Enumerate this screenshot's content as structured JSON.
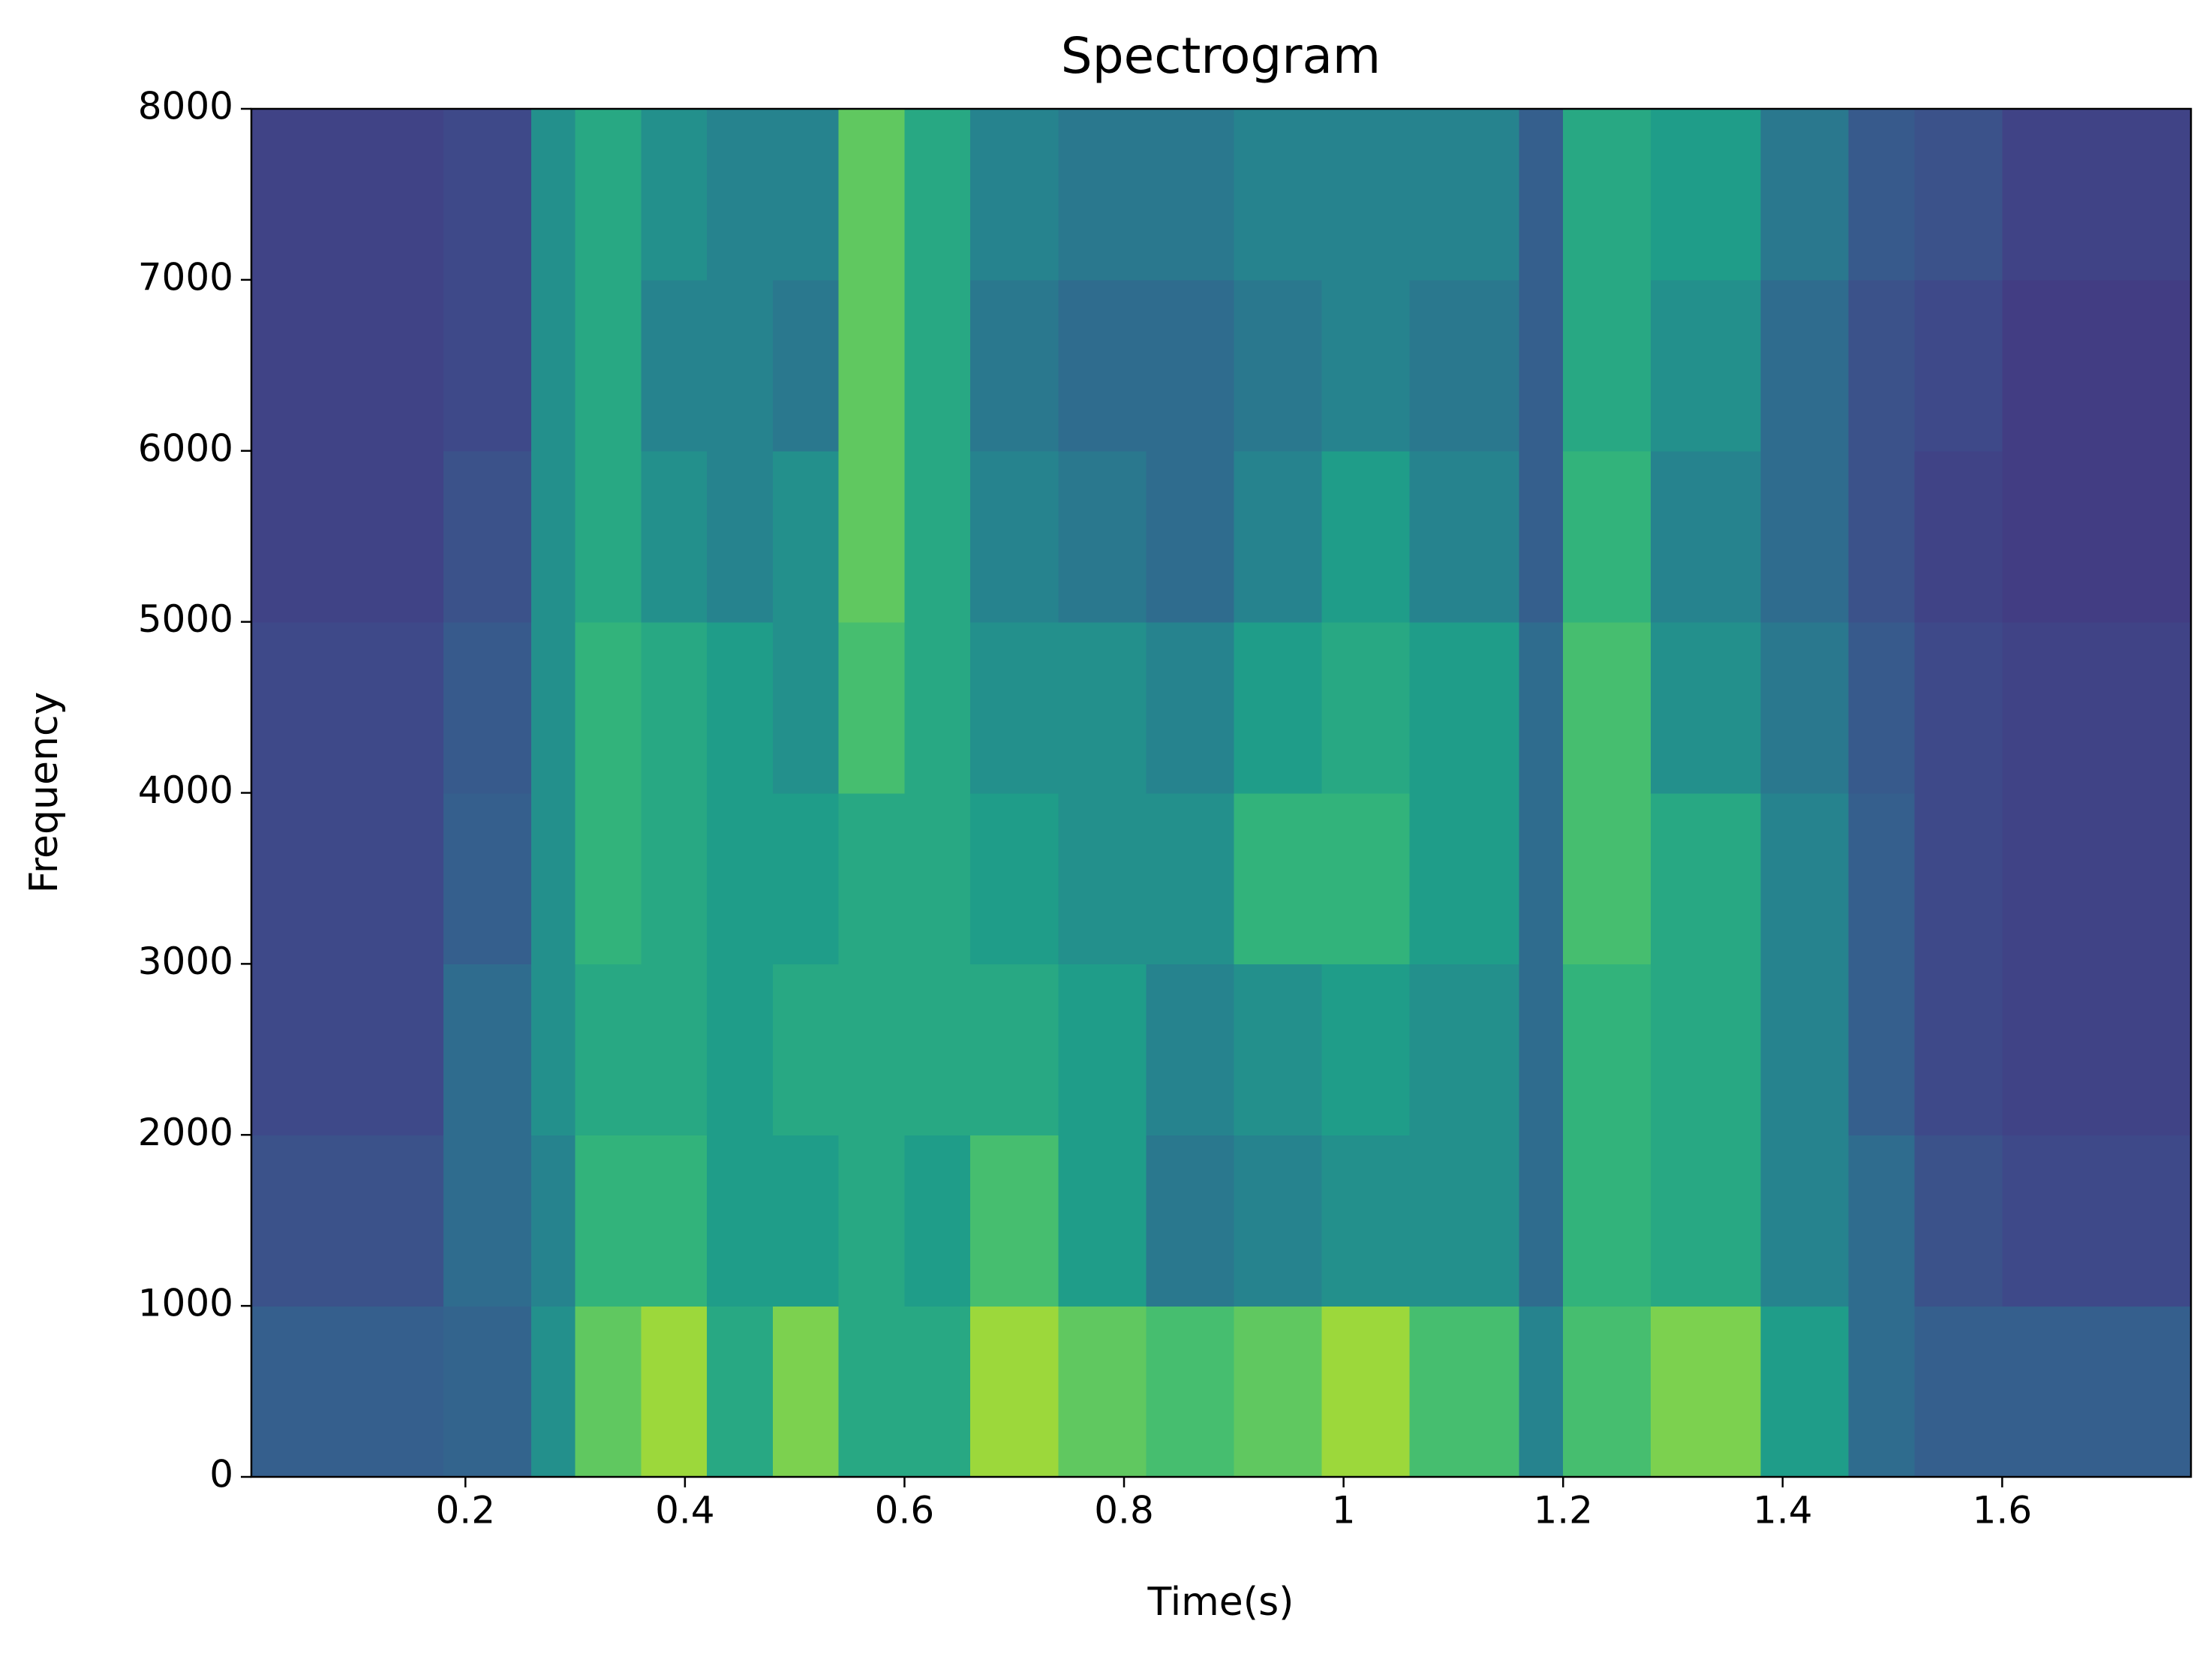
{
  "chart_data": {
    "type": "spectrogram",
    "title": "Spectrogram",
    "x_label": "Time(s)",
    "y_label": "Frequency",
    "xlim": [
      0.005,
      1.772
    ],
    "ylim": [
      0,
      8000
    ],
    "xticks": [
      0.2,
      0.4,
      0.6,
      0.8,
      1.0,
      1.2,
      1.4,
      1.6
    ],
    "yticks": [
      0,
      1000,
      2000,
      3000,
      4000,
      5000,
      6000,
      7000,
      8000
    ],
    "colormap": "viridis",
    "xbins": [
      0.005,
      0.1,
      0.18,
      0.26,
      0.3,
      0.36,
      0.42,
      0.48,
      0.54,
      0.6,
      0.66,
      0.74,
      0.82,
      0.9,
      0.98,
      1.06,
      1.16,
      1.2,
      1.28,
      1.38,
      1.46,
      1.52,
      1.6,
      1.772
    ],
    "ybins": [
      0,
      1000,
      2000,
      3000,
      4000,
      5000,
      6000,
      7000,
      8000
    ],
    "z": [
      [
        0.3,
        0.3,
        0.32,
        0.5,
        0.75,
        0.85,
        0.6,
        0.8,
        0.6,
        0.6,
        0.85,
        0.75,
        0.7,
        0.75,
        0.85,
        0.7,
        0.45,
        0.7,
        0.8,
        0.55,
        0.35,
        0.3,
        0.3
      ],
      [
        0.25,
        0.25,
        0.35,
        0.45,
        0.65,
        0.65,
        0.55,
        0.55,
        0.6,
        0.55,
        0.7,
        0.55,
        0.4,
        0.45,
        0.5,
        0.5,
        0.35,
        0.65,
        0.6,
        0.45,
        0.35,
        0.25,
        0.22
      ],
      [
        0.22,
        0.22,
        0.35,
        0.5,
        0.6,
        0.6,
        0.55,
        0.6,
        0.6,
        0.6,
        0.6,
        0.55,
        0.45,
        0.5,
        0.55,
        0.5,
        0.35,
        0.65,
        0.6,
        0.45,
        0.3,
        0.22,
        0.2
      ],
      [
        0.22,
        0.22,
        0.3,
        0.5,
        0.65,
        0.6,
        0.55,
        0.55,
        0.6,
        0.6,
        0.55,
        0.5,
        0.5,
        0.65,
        0.65,
        0.55,
        0.35,
        0.7,
        0.6,
        0.45,
        0.3,
        0.22,
        0.2
      ],
      [
        0.22,
        0.22,
        0.28,
        0.5,
        0.65,
        0.6,
        0.55,
        0.5,
        0.7,
        0.6,
        0.5,
        0.5,
        0.45,
        0.55,
        0.6,
        0.55,
        0.35,
        0.7,
        0.5,
        0.4,
        0.28,
        0.22,
        0.2
      ],
      [
        0.2,
        0.2,
        0.25,
        0.5,
        0.6,
        0.5,
        0.45,
        0.5,
        0.75,
        0.6,
        0.45,
        0.4,
        0.35,
        0.45,
        0.55,
        0.45,
        0.3,
        0.65,
        0.45,
        0.35,
        0.25,
        0.2,
        0.18
      ],
      [
        0.2,
        0.2,
        0.22,
        0.5,
        0.6,
        0.45,
        0.45,
        0.4,
        0.75,
        0.6,
        0.4,
        0.35,
        0.35,
        0.4,
        0.45,
        0.4,
        0.3,
        0.6,
        0.5,
        0.35,
        0.25,
        0.22,
        0.18
      ],
      [
        0.2,
        0.2,
        0.22,
        0.5,
        0.6,
        0.5,
        0.45,
        0.45,
        0.75,
        0.6,
        0.45,
        0.4,
        0.4,
        0.45,
        0.45,
        0.45,
        0.3,
        0.6,
        0.55,
        0.4,
        0.28,
        0.25,
        0.2
      ]
    ]
  }
}
